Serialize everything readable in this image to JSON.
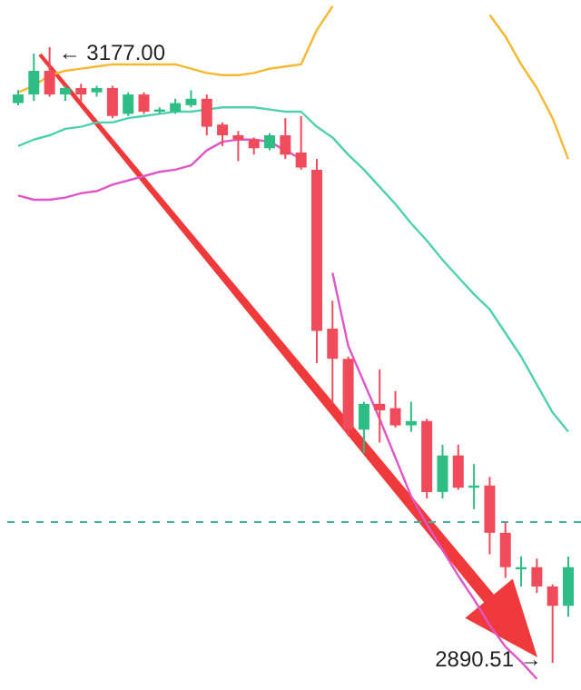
{
  "chart_data": {
    "type": "candlestick",
    "categories": [
      null,
      null,
      null,
      null,
      null,
      null,
      null,
      null,
      null,
      null,
      null,
      null,
      null,
      null,
      null,
      null,
      null,
      null,
      null,
      null,
      null,
      null,
      null,
      null,
      null,
      null,
      null,
      null,
      null,
      null,
      null,
      null,
      null,
      null,
      null,
      null
    ],
    "ohlc": [
      [
        3151,
        3157,
        3150,
        3155
      ],
      [
        3155,
        3174,
        3152,
        3166
      ],
      [
        3166,
        3177.0,
        3154,
        3155
      ],
      [
        3155,
        3159,
        3152,
        3158
      ],
      [
        3158,
        3160,
        3152,
        3155
      ],
      [
        3156,
        3159,
        3154,
        3158
      ],
      [
        3158,
        3159,
        3144,
        3145
      ],
      [
        3146,
        3156,
        3145,
        3155
      ],
      [
        3155,
        3156,
        3146,
        3147
      ],
      [
        3147,
        3149,
        3146,
        3148
      ],
      [
        3147,
        3153,
        3146,
        3151
      ],
      [
        3150,
        3157,
        3149,
        3153
      ],
      [
        3153,
        3155,
        3136,
        3140
      ],
      [
        3141,
        3142,
        3131,
        3136
      ],
      [
        3136,
        3138,
        3124,
        3134
      ],
      [
        3134,
        3135,
        3127,
        3130
      ],
      [
        3130,
        3137,
        3129,
        3136
      ],
      [
        3136,
        3144,
        3125,
        3127
      ],
      [
        3128,
        3145,
        3120,
        3121
      ],
      [
        3120,
        3125,
        3030,
        3045
      ],
      [
        3046,
        3059,
        3011,
        3032
      ],
      [
        3032,
        3033,
        2996,
        2999
      ],
      [
        2999,
        3012,
        2988,
        3011
      ],
      [
        3011,
        3027,
        2993,
        3008
      ],
      [
        3009,
        3017,
        3000,
        3001
      ],
      [
        3001,
        3012,
        2998,
        3003
      ],
      [
        3003,
        3004,
        2967,
        2970
      ],
      [
        2970,
        2992,
        2967,
        2987
      ],
      [
        2987,
        2992,
        2971,
        2972
      ],
      [
        2972,
        2983,
        2962,
        2973
      ],
      [
        2973,
        2977,
        2941,
        2951
      ],
      [
        2951,
        2956,
        2930,
        2935
      ],
      [
        2934,
        2940,
        2926,
        2935
      ],
      [
        2935,
        2939,
        2923,
        2926
      ],
      [
        2926,
        2927,
        2890.51,
        2917
      ],
      [
        2917,
        2940,
        2912,
        2935
      ]
    ],
    "colors": [
      "#2ebd85",
      "#2ebd85",
      "#f04b5a",
      "#2ebd85",
      "#f04b5a",
      "#2ebd85",
      "#f04b5a",
      "#2ebd85",
      "#f04b5a",
      "#2ebd85",
      "#2ebd85",
      "#2ebd85",
      "#f04b5a",
      "#f04b5a",
      "#f04b5a",
      "#f04b5a",
      "#2ebd85",
      "#f04b5a",
      "#f04b5a",
      "#f04b5a",
      "#f04b5a",
      "#f04b5a",
      "#2ebd85",
      "#f04b5a",
      "#f04b5a",
      "#2ebd85",
      "#f04b5a",
      "#2ebd85",
      "#f04b5a",
      "#2ebd85",
      "#f04b5a",
      "#f04b5a",
      "#2ebd85",
      "#f04b5a",
      "#f04b5a",
      "#2ebd85"
    ],
    "series": [
      {
        "type": "line",
        "color": "#f5b82e",
        "values": [
          3156,
          3159,
          3164,
          3166,
          3167,
          3168,
          3169,
          3169,
          3169,
          3169,
          3169,
          3167,
          3165,
          3164,
          3164,
          3165,
          3167,
          3168,
          3169,
          3185,
          3196,
          null,
          null,
          null,
          null,
          null,
          null,
          null,
          null,
          null,
          3192,
          3182,
          3169,
          3158,
          3144,
          3125
        ]
      },
      {
        "type": "line",
        "color": "#4fd1b0",
        "values": [
          3131,
          3134,
          3136,
          3139,
          3140,
          3142,
          3142,
          3144,
          3145,
          3146,
          3147,
          3147,
          3148,
          3149,
          3149,
          3149,
          3148,
          3147,
          3147,
          3140,
          3135,
          3127,
          3120,
          3112,
          3104,
          3095,
          3087,
          3078,
          3070,
          3062,
          3055,
          3044,
          3033,
          3020,
          3007,
          2998
        ]
      },
      {
        "type": "line",
        "color": "#e055c8",
        "values": [
          3108,
          3106,
          3106,
          3107,
          3109,
          3110,
          3113,
          3115,
          3117,
          3119,
          3120,
          3122,
          3129,
          3133,
          3134,
          3134,
          3133,
          3129,
          3125,
          null,
          3072,
          3038,
          3021,
          3004,
          2986,
          2968,
          2955,
          2943,
          2931,
          2920,
          2908,
          2898,
          2891,
          2883,
          null,
          null
        ]
      }
    ],
    "ref_lines": [
      {
        "axis": "y",
        "value": 2956,
        "color": "#3cb8a0",
        "line_style": "dashed"
      }
    ],
    "annotations": [
      "← 3177.00",
      "2890.51 →"
    ]
  }
}
